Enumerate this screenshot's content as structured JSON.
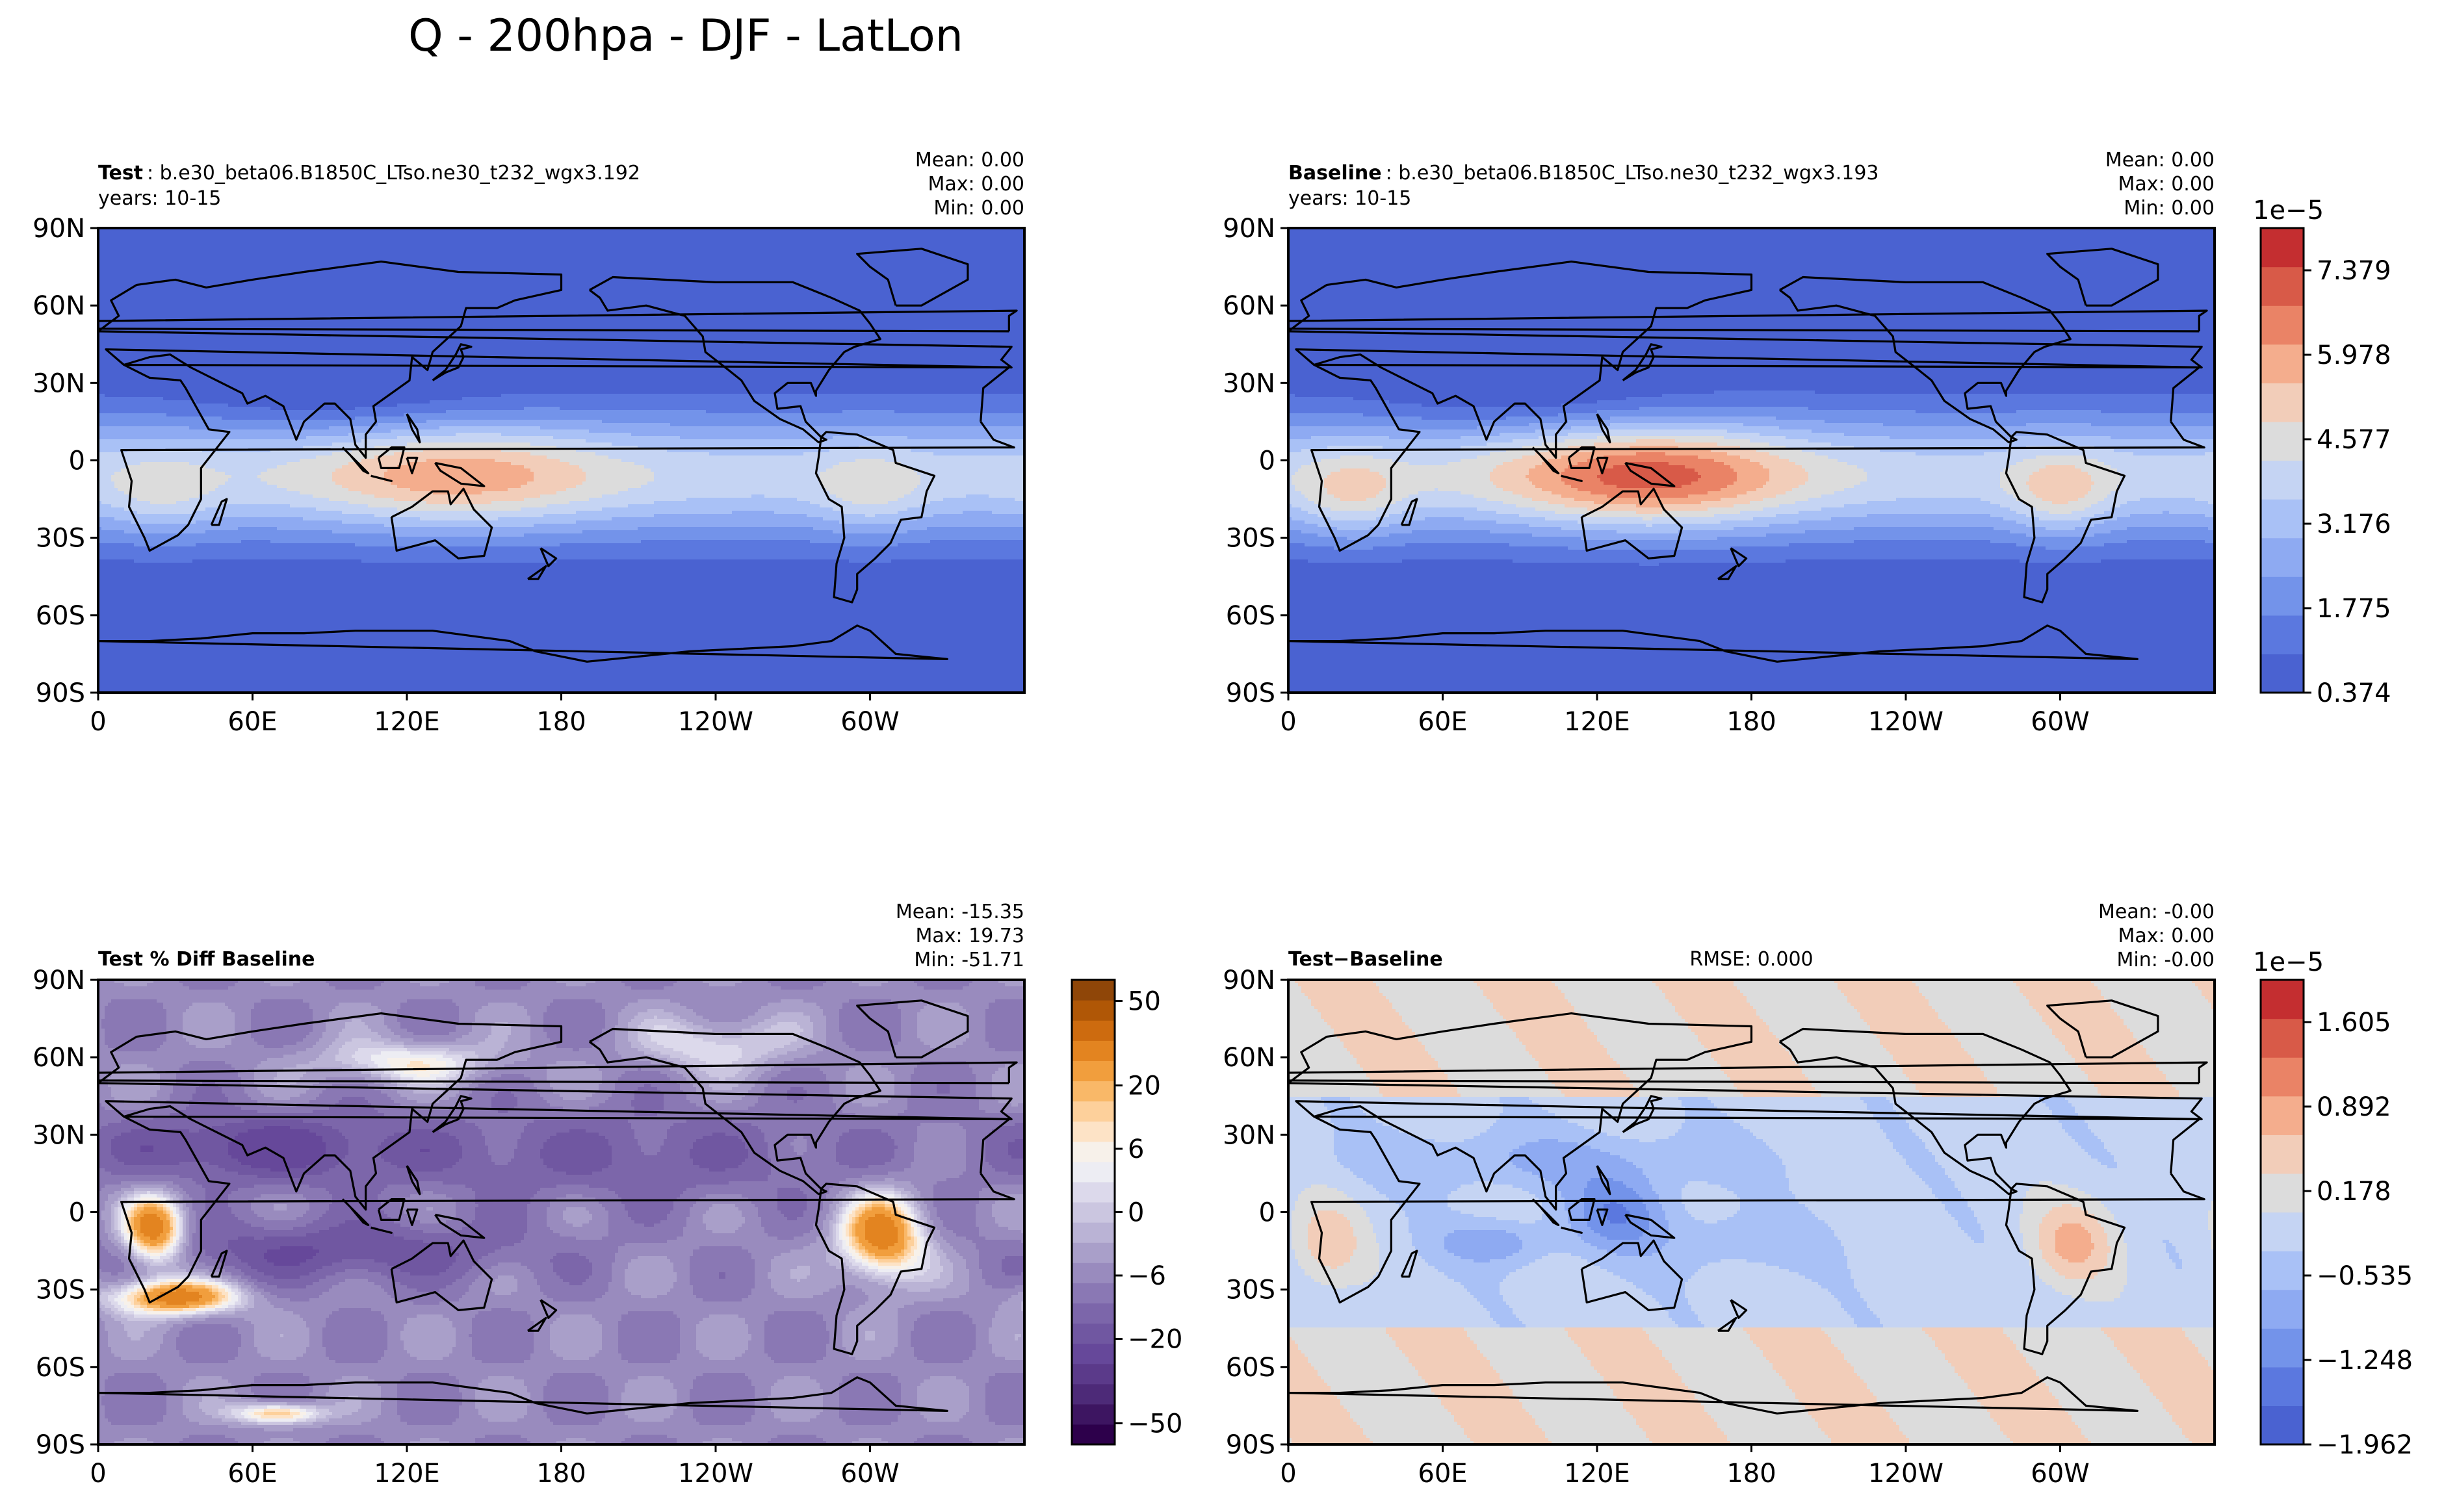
{
  "figure": {
    "title": "Q - 200hpa - DJF - LatLon"
  },
  "chart_data": [
    {
      "id": "test",
      "type": "heatmap",
      "label_bold": "Test",
      "label_rest": ": b.e30_beta06.B1850C_LTso.ne30_t232_wgx3.192",
      "years": "years: 10-15",
      "stats": [
        "Mean:  0.00",
        "Max:  0.00",
        "Min:  0.00"
      ],
      "rmse": "",
      "field": "abs",
      "ylabels": [
        "90N",
        "60N",
        "30N",
        "0",
        "30S",
        "60S",
        "90S"
      ],
      "xlabels": [
        "0",
        "60E",
        "120E",
        "180",
        "120W",
        "60W"
      ],
      "xlim": [
        0,
        360
      ],
      "ylim": [
        -90,
        90
      ],
      "colorbar": null
    },
    {
      "id": "baseline",
      "type": "heatmap",
      "label_bold": "Baseline",
      "label_rest": ": b.e30_beta06.B1850C_LTso.ne30_t232_wgx3.193",
      "years": "years: 10-15",
      "stats": [
        "Mean:  0.00",
        "Max:  0.00",
        "Min:  0.00"
      ],
      "rmse": "",
      "field": "abs",
      "ylabels": [
        "90N",
        "60N",
        "30N",
        "0",
        "30S",
        "60S",
        "90S"
      ],
      "xlabels": [
        "0",
        "60E",
        "120E",
        "180",
        "120W",
        "60W"
      ],
      "xlim": [
        0,
        360
      ],
      "ylim": [
        -90,
        90
      ],
      "colorbar": {
        "exponent": "1e−5",
        "ticks": [
          "0.374",
          "1.775",
          "3.176",
          "4.577",
          "5.978",
          "7.379"
        ],
        "tick_levels": [
          0,
          2,
          4,
          6,
          8,
          10
        ],
        "n_levels": 11,
        "colors": [
          "#4a62d1",
          "#5b78df",
          "#7393ea",
          "#8eaaf2",
          "#a9c1f6",
          "#c5d4f3",
          "#dcdcdc",
          "#f2cdb9",
          "#f4ad8d",
          "#ea8366",
          "#d85a48",
          "#c42e30"
        ],
        "extend": false
      }
    },
    {
      "id": "pctdiff",
      "type": "heatmap",
      "label_bold": "Test % Diff Baseline",
      "label_rest": "",
      "years": "",
      "stats": [
        "Mean: -15.35",
        "Max: 19.73",
        "Min: -51.71"
      ],
      "rmse": "",
      "field": "pct",
      "ylabels": [
        "90N",
        "60N",
        "30N",
        "0",
        "30S",
        "60S",
        "90S"
      ],
      "xlabels": [
        "0",
        "60E",
        "120E",
        "180",
        "120W",
        "60W"
      ],
      "xlim": [
        0,
        360
      ],
      "ylim": [
        -90,
        90
      ],
      "colorbar": {
        "exponent": "",
        "ticks": [
          "−50",
          "−20",
          "−6",
          "0",
          "6",
          "20",
          "50"
        ],
        "tick_levels": [
          1,
          5,
          8,
          11,
          14,
          17,
          21
        ],
        "n_levels": 22,
        "colors": [
          "#2d004b",
          "#3d1561",
          "#4d2a78",
          "#5b3a8a",
          "#66489a",
          "#7057a1",
          "#7c66aa",
          "#8a78b4",
          "#998bbe",
          "#a99fc9",
          "#bab3d5",
          "#cbc6e0",
          "#dcd9eb",
          "#ededf3",
          "#f7f1ea",
          "#fde3c6",
          "#fdd09b",
          "#f9b868",
          "#f19e3d",
          "#e38420",
          "#cd6b0f",
          "#b05706",
          "#8f4608"
        ],
        "extend": true
      }
    },
    {
      "id": "diff",
      "type": "heatmap",
      "label_bold": "Test−Baseline",
      "label_rest": "",
      "years": "",
      "stats": [
        "Mean: -0.00",
        "Max:  0.00",
        "Min: -0.00"
      ],
      "rmse": "RMSE: 0.000",
      "field": "diff",
      "ylabels": [
        "90N",
        "60N",
        "30N",
        "0",
        "30S",
        "60S",
        "90S"
      ],
      "xlabels": [
        "0",
        "60E",
        "120E",
        "180",
        "120W",
        "60W"
      ],
      "xlim": [
        0,
        360
      ],
      "ylim": [
        -90,
        90
      ],
      "colorbar": {
        "exponent": "1e−5",
        "ticks": [
          "−1.962",
          "−1.248",
          "−0.535",
          "0.178",
          "0.892",
          "1.605"
        ],
        "tick_levels": [
          0,
          2,
          4,
          6,
          8,
          10
        ],
        "n_levels": 11,
        "colors": [
          "#4a62d1",
          "#5b78df",
          "#7393ea",
          "#8eaaf2",
          "#a9c1f6",
          "#c5d4f3",
          "#dcdcdc",
          "#f2cdb9",
          "#f4ad8d",
          "#ea8366",
          "#d85a48",
          "#c42e30"
        ],
        "extend": false
      }
    }
  ]
}
